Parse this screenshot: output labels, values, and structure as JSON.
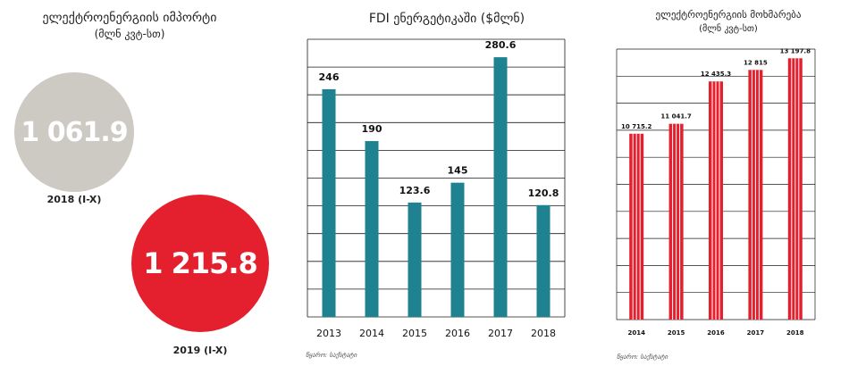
{
  "import": {
    "title": "ელექტროენერგიის იმპორტი",
    "unit": "(მლნ კვტ-სთ)",
    "colors": {
      "prev": "#cdc9c3",
      "curr": "#e4202f"
    }
  },
  "fdi": {
    "title": "FDI ენერგეტიკაში ($მლნ)",
    "source": "წყარო: საქსტატი",
    "color": "#1f8290"
  },
  "consumption": {
    "title": "ელექტროენერგიის მოხმარება",
    "unit": "(მლნ კვტ-სთ)",
    "source": "წყარო: საქსტატი",
    "color": "#e4202f"
  },
  "chart_data": [
    {
      "type": "bubble",
      "title": "ელექტროენერგიის იმპორტი",
      "subtitle": "(მლნ კვტ-სთ)",
      "categories": [
        "2018 (I-X)",
        "2019 (I-X)"
      ],
      "values": [
        1061.9,
        1215.8
      ],
      "labels": [
        "1 061.9",
        "1 215.8"
      ]
    },
    {
      "type": "bar",
      "title": "FDI ენერგეტიკაში ($მლნ)",
      "categories": [
        "2013",
        "2014",
        "2015",
        "2016",
        "2017",
        "2018"
      ],
      "values": [
        246,
        190,
        123.6,
        145,
        280.6,
        120.8
      ],
      "labels": [
        "246",
        "190",
        "123.6",
        "145",
        "280.6",
        "120.8"
      ],
      "ylim": [
        0,
        300
      ],
      "grid": true
    },
    {
      "type": "bar",
      "title": "ელექტროენერგიის მოხმარება",
      "subtitle": "(მლნ კვტ-სთ)",
      "categories": [
        "2014",
        "2015",
        "2016",
        "2017",
        "2018"
      ],
      "values": [
        10715.2,
        11041.7,
        12435.3,
        12815,
        13197.8
      ],
      "labels": [
        "10 715.2",
        "11 041.7",
        "12 435.3",
        "12 815",
        "13 197.8"
      ],
      "ylim": [
        4600,
        13500
      ],
      "grid": true
    }
  ]
}
